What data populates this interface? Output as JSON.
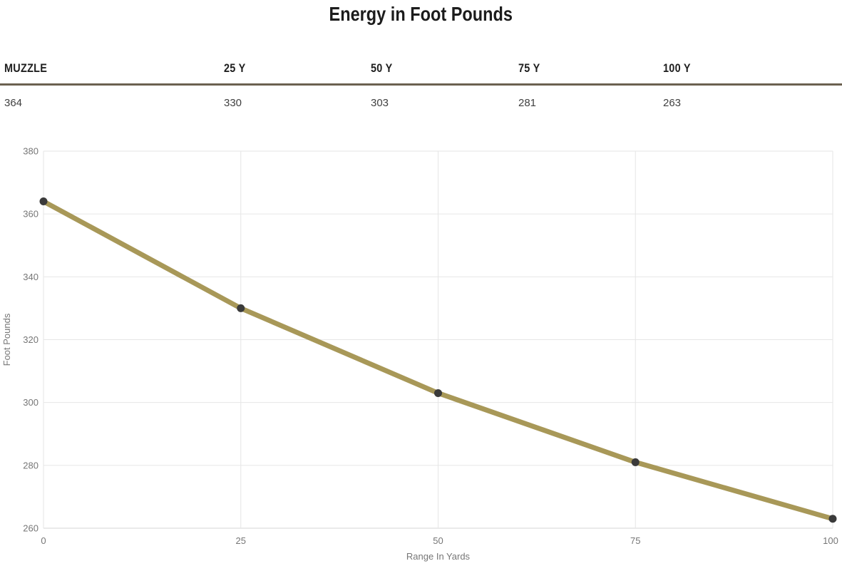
{
  "title": "Energy in Foot Pounds",
  "table": {
    "headers": [
      "MUZZLE",
      "25 Y",
      "50 Y",
      "75 Y",
      "100 Y"
    ],
    "values": [
      "364",
      "330",
      "303",
      "281",
      "263"
    ]
  },
  "chart_data": {
    "type": "line",
    "x": [
      0,
      25,
      50,
      75,
      100
    ],
    "values": [
      364,
      330,
      303,
      281,
      263
    ],
    "series_name": "Energy",
    "title": "",
    "xlabel": "Range In Yards",
    "ylabel": "Foot Pounds",
    "xlim": [
      0,
      100
    ],
    "ylim": [
      260,
      380
    ],
    "x_ticks": [
      0,
      25,
      50,
      75,
      100
    ],
    "y_ticks": [
      260,
      280,
      300,
      320,
      340,
      360,
      380
    ],
    "grid": true,
    "legend_position": "none",
    "line_color": "#a89858",
    "point_color": "#3a3a3a",
    "grid_color": "#e6e6e6",
    "axis_line_color": "#d4d4d4",
    "axis_text_color": "#767676"
  },
  "colors": {
    "title_text": "#1c1c1c",
    "table_rule": "#6b6150",
    "header_text": "#1f1f1f",
    "value_text": "#3f3f3f",
    "background": "#ffffff"
  }
}
